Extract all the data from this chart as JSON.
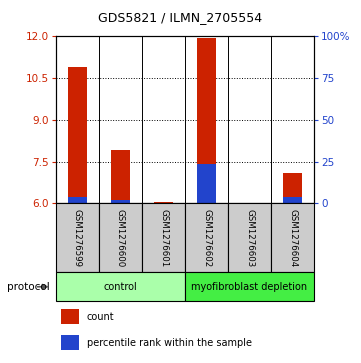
{
  "title": "GDS5821 / ILMN_2705554",
  "samples": [
    "GSM1276599",
    "GSM1276600",
    "GSM1276601",
    "GSM1276602",
    "GSM1276603",
    "GSM1276604"
  ],
  "red_values": [
    10.9,
    7.9,
    6.05,
    11.95,
    6.0,
    7.1
  ],
  "blue_values": [
    6.22,
    6.12,
    6.0,
    7.42,
    6.0,
    6.22
  ],
  "ylim": [
    6.0,
    12.0
  ],
  "yticks_left": [
    6,
    7.5,
    9,
    10.5,
    12
  ],
  "yticks_right": [
    0,
    25,
    50,
    75,
    100
  ],
  "y_right_labels": [
    "0",
    "25",
    "50",
    "75",
    "100%"
  ],
  "groups": [
    {
      "label": "control",
      "start": 0,
      "end": 3,
      "color": "#aaffaa"
    },
    {
      "label": "myofibroblast depletion",
      "start": 3,
      "end": 6,
      "color": "#44ee44"
    }
  ],
  "red_bar_width": 0.45,
  "blue_bar_width": 0.45,
  "red_color": "#cc2200",
  "blue_color": "#2244cc",
  "bg_color": "#ffffff",
  "sample_bg": "#cccccc",
  "left_tick_color": "#cc2200",
  "right_tick_color": "#2244cc",
  "legend_red_label": "count",
  "legend_blue_label": "percentile rank within the sample",
  "protocol_label": "protocol"
}
